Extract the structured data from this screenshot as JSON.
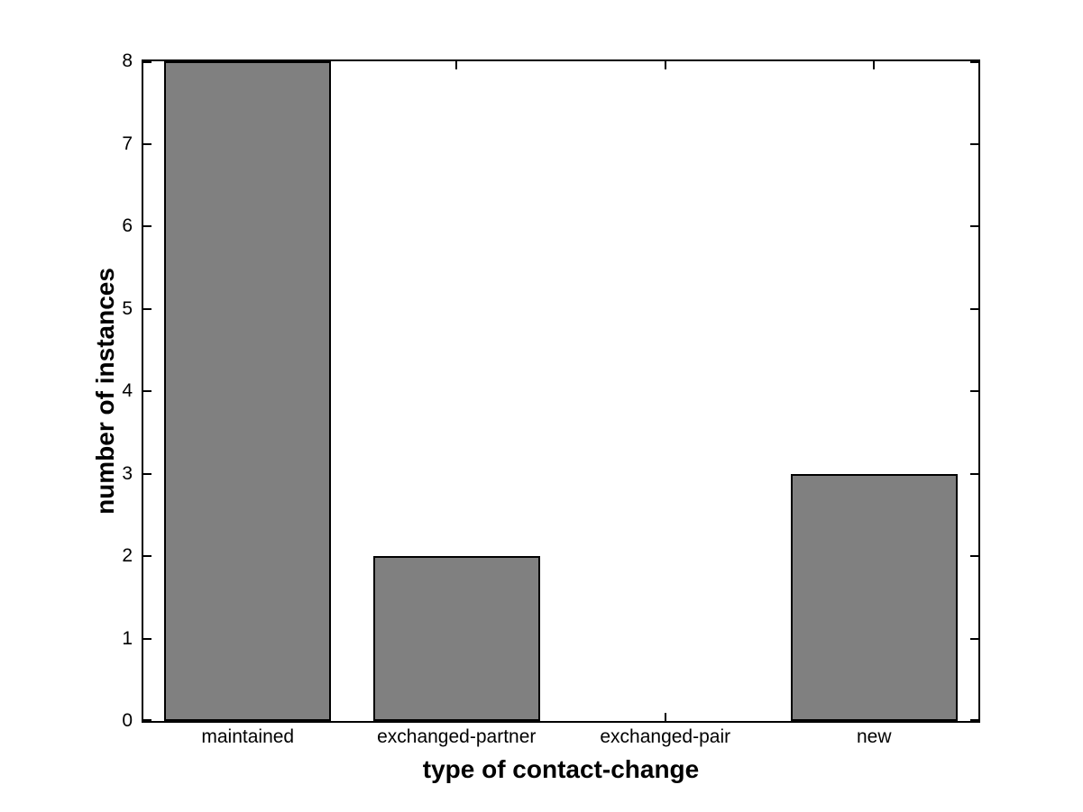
{
  "figure": {
    "background": "#ffffff"
  },
  "chart_data": {
    "type": "bar",
    "categories": [
      "maintained",
      "exchanged-partner",
      "exchanged-pair",
      "new"
    ],
    "values": [
      8,
      2,
      0,
      3
    ],
    "title": "",
    "xlabel": "type of contact-change",
    "ylabel": "number of instances",
    "ylim": [
      0,
      8
    ],
    "yticks": [
      0,
      1,
      2,
      3,
      4,
      5,
      6,
      7,
      8
    ],
    "y_tick_labels": [
      "0",
      "1",
      "2",
      "3",
      "4",
      "5",
      "6",
      "7",
      "8"
    ],
    "bar_width_fraction": 0.8,
    "bar_color": "#808080",
    "bar_edge_color": "#000000",
    "axis_color": "#000000",
    "text_color": "#000000",
    "grid": false,
    "box": true,
    "tick_direction": "in",
    "legend": null
  }
}
